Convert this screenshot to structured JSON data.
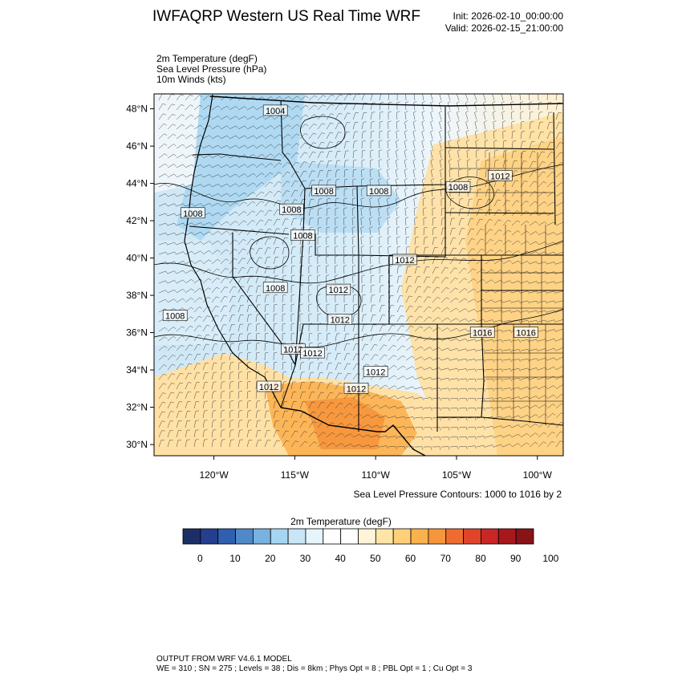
{
  "header": {
    "title": "IWFAQRP Western US Real Time WRF",
    "init": "Init: 2026-02-10_00:00:00",
    "valid": "Valid: 2026-02-15_21:00:00"
  },
  "fields": [
    "2m Temperature   (degF)",
    "Sea Level Pressure   (hPa)",
    "10m Winds   (kts)"
  ],
  "map": {
    "lat_labels": [
      "48°N",
      "46°N",
      "44°N",
      "42°N",
      "40°N",
      "38°N",
      "36°N",
      "34°N",
      "32°N",
      "30°N"
    ],
    "lat_values": [
      48,
      46,
      44,
      42,
      40,
      38,
      36,
      34,
      32,
      30
    ],
    "lon_labels": [
      "120°W",
      "115°W",
      "110°W",
      "105°W",
      "100°W"
    ],
    "lon_values": [
      -120,
      -115,
      -110,
      -105,
      -100
    ],
    "extent": {
      "lon_min": -123.7,
      "lon_max": -98.4,
      "lat_min": 29.4,
      "lat_max": 48.8
    },
    "contour_labels": [
      {
        "text": "1004",
        "lon": -116.2,
        "lat": 47.9
      },
      {
        "text": "1008",
        "lon": -121.3,
        "lat": 42.4
      },
      {
        "text": "1008",
        "lon": -115.2,
        "lat": 42.6
      },
      {
        "text": "1008",
        "lon": -113.2,
        "lat": 43.6
      },
      {
        "text": "1008",
        "lon": -109.8,
        "lat": 43.6
      },
      {
        "text": "1008",
        "lon": -104.9,
        "lat": 43.8
      },
      {
        "text": "1012",
        "lon": -102.3,
        "lat": 44.4
      },
      {
        "text": "1008",
        "lon": -114.5,
        "lat": 41.2
      },
      {
        "text": "1012",
        "lon": -108.2,
        "lat": 39.9
      },
      {
        "text": "1008",
        "lon": -116.2,
        "lat": 38.4
      },
      {
        "text": "1012",
        "lon": -112.3,
        "lat": 38.3
      },
      {
        "text": "1008",
        "lon": -122.4,
        "lat": 36.9
      },
      {
        "text": "1012",
        "lon": -112.2,
        "lat": 36.7
      },
      {
        "text": "1016",
        "lon": -103.4,
        "lat": 36.0
      },
      {
        "text": "1016",
        "lon": -100.7,
        "lat": 36.0
      },
      {
        "text": "1012",
        "lon": -115.1,
        "lat": 35.1
      },
      {
        "text": "1012",
        "lon": -113.9,
        "lat": 34.9
      },
      {
        "text": "1012",
        "lon": -110.0,
        "lat": 33.9
      },
      {
        "text": "1012",
        "lon": -116.6,
        "lat": 33.1
      },
      {
        "text": "1012",
        "lon": -111.2,
        "lat": 33.0
      }
    ]
  },
  "contour_note": "Sea Level Pressure Contours: 1000 to 1016 by 2",
  "colorbar": {
    "title": "2m Temperature  (degF)",
    "colors": [
      "#1b2f66",
      "#253f8e",
      "#2f5fb0",
      "#4f89c8",
      "#78b2e0",
      "#a6d5f2",
      "#c8e6f6",
      "#e6f4fb",
      "#ffffff",
      "#ffffff",
      "#fff4d8",
      "#ffe4a8",
      "#ffcf7a",
      "#fbb24c",
      "#f6953c",
      "#ef6c30",
      "#e0442a",
      "#c92626",
      "#a8171c",
      "#871317"
    ],
    "labels": [
      "0",
      "10",
      "20",
      "30",
      "40",
      "50",
      "60",
      "70",
      "80",
      "90",
      "100"
    ]
  },
  "footer": [
    "OUTPUT FROM WRF V4.6.1 MODEL",
    "WE = 310 ; SN = 275 ; Levels = 38 ; Dis = 8km ; Phys Opt = 8 ; PBL Opt = 1 ; Cu Opt = 3"
  ]
}
